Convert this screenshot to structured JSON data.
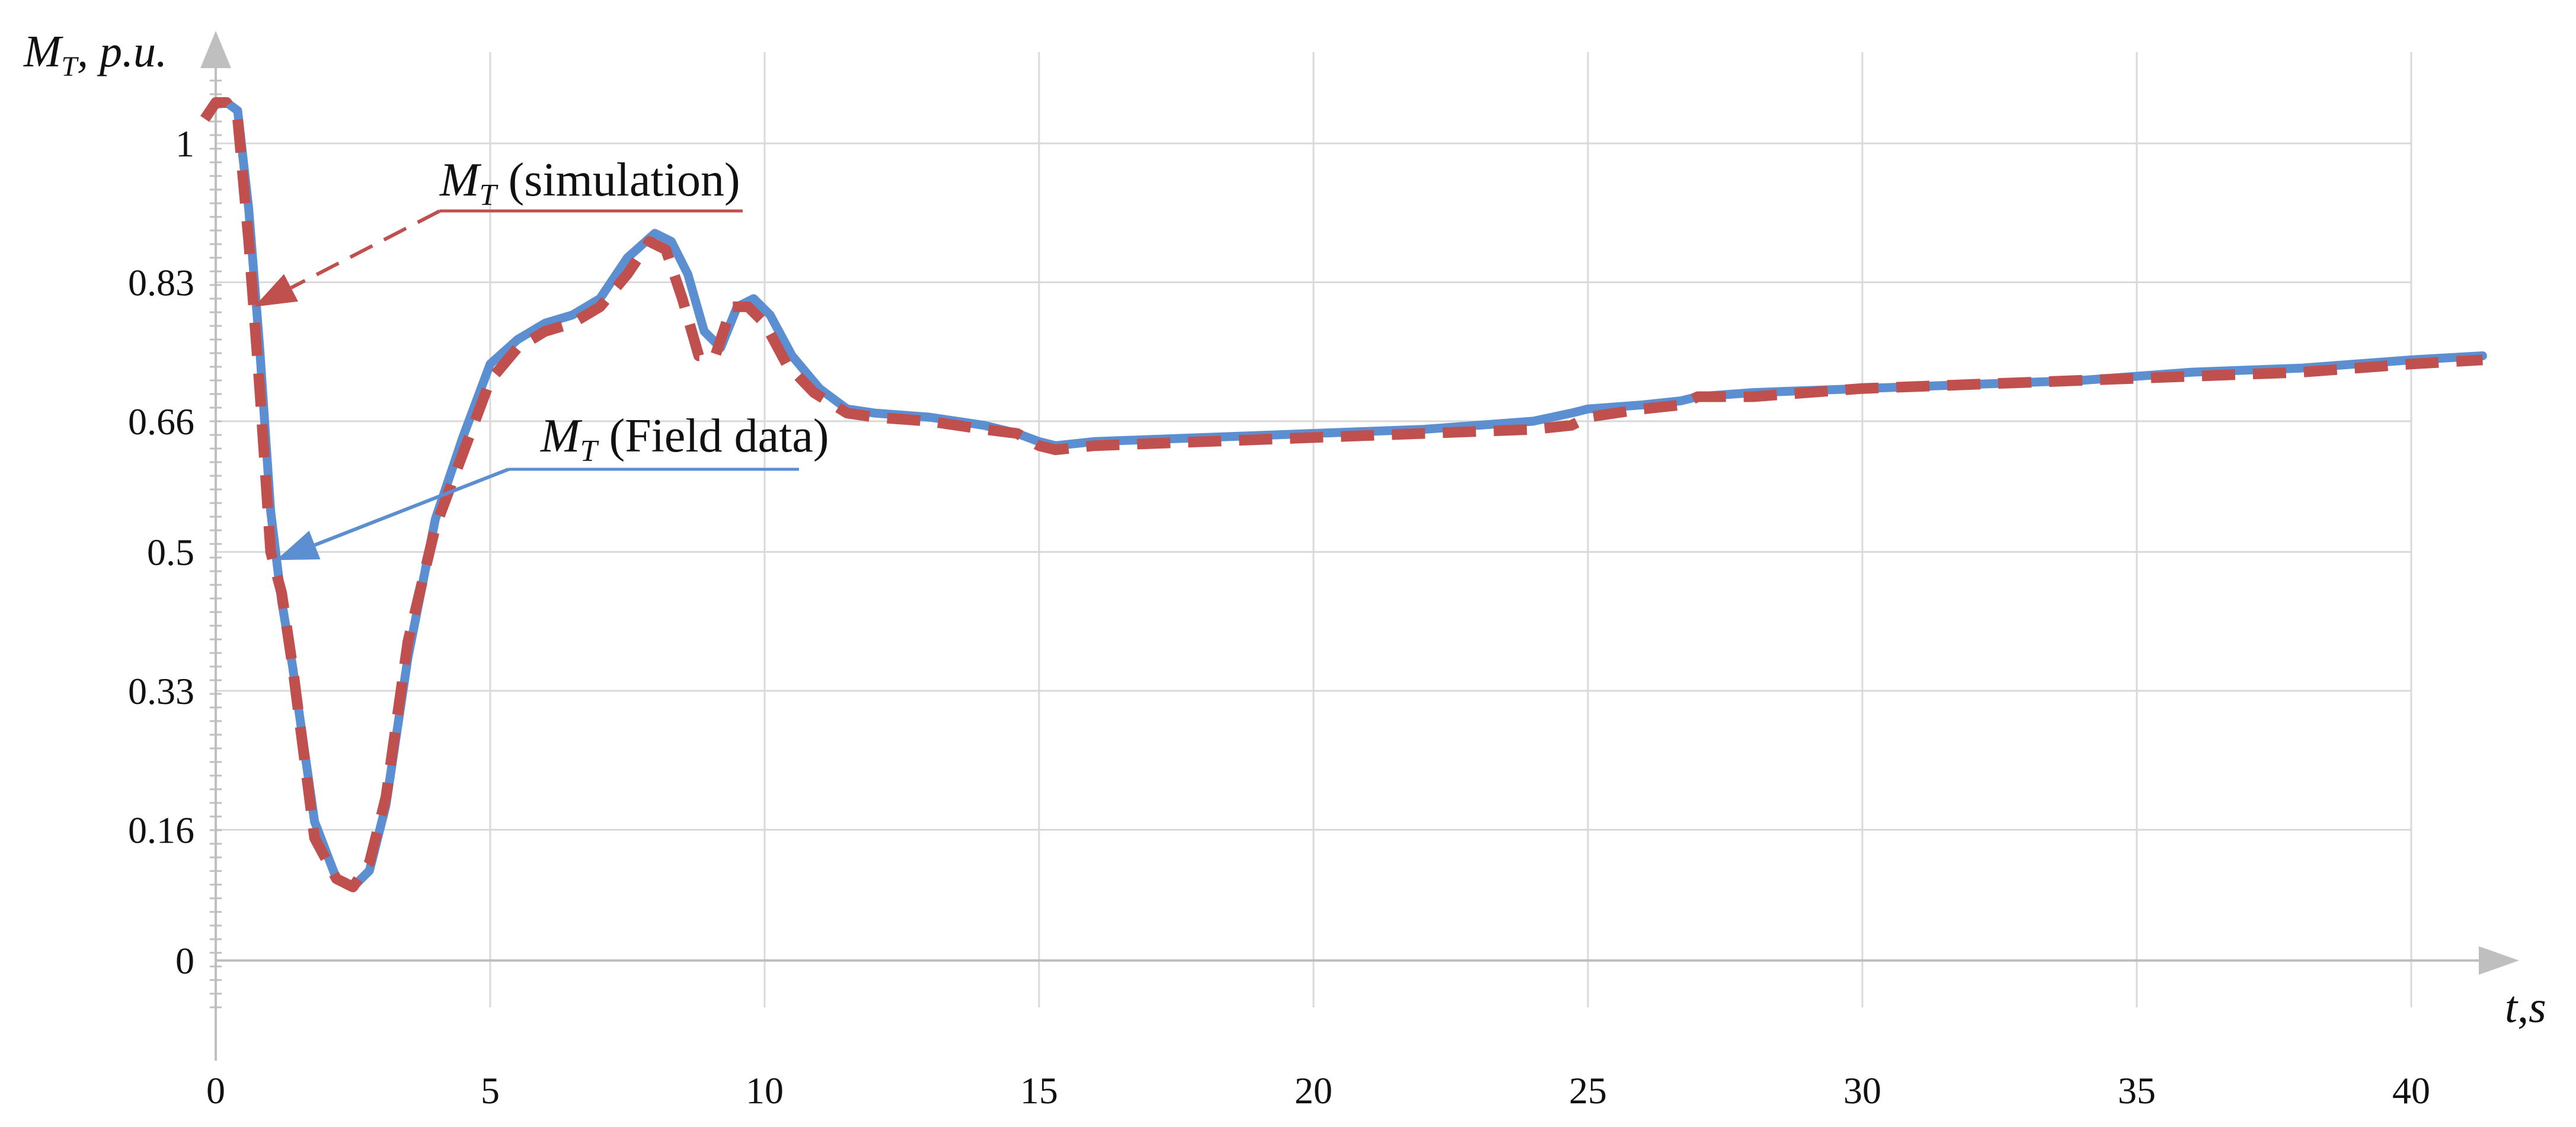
{
  "chart_data": {
    "type": "line",
    "x_tick_labels": [
      "0",
      "5",
      "10",
      "15",
      "20",
      "25",
      "30",
      "35",
      "40"
    ],
    "y_tick_labels": [
      "0",
      "0.16",
      "0.33",
      "0.5",
      "0.66",
      "0.83",
      "1"
    ],
    "xlim": [
      0,
      41.5
    ],
    "ylim": [
      -0.1,
      1.12
    ],
    "grid": true,
    "xlabel": {
      "sym": "t",
      "sep": ",",
      "unit": "s"
    },
    "ylabel": {
      "sym": "M",
      "sub": "T",
      "rest": ", p.u."
    },
    "series": [
      {
        "name": "M_T (Field data)",
        "color": "#5b8fd1",
        "style": "solid",
        "x": [
          0,
          0.2,
          0.4,
          0.6,
          0.8,
          1.0,
          1.2,
          1.4,
          1.8,
          2.2,
          2.5,
          2.8,
          3.1,
          3.5,
          4.0,
          4.5,
          5.0,
          5.5,
          6.0,
          6.5,
          7.0,
          7.5,
          8.0,
          8.3,
          8.6,
          8.9,
          9.2,
          9.5,
          9.8,
          10.1,
          10.5,
          11.0,
          11.5,
          12.0,
          13.0,
          14.0,
          14.6,
          15.0,
          15.3,
          16.0,
          18.0,
          20.0,
          22.0,
          24.0,
          24.7,
          25.0,
          26.0,
          26.7,
          27.0,
          28.0,
          30.0,
          32.0,
          34.0,
          36.0,
          38.0,
          40.0,
          41.3
        ],
        "y": [
          1.05,
          1.05,
          1.04,
          0.92,
          0.75,
          0.55,
          0.44,
          0.36,
          0.17,
          0.1,
          0.09,
          0.11,
          0.19,
          0.37,
          0.54,
          0.64,
          0.73,
          0.76,
          0.78,
          0.79,
          0.81,
          0.86,
          0.89,
          0.88,
          0.84,
          0.77,
          0.75,
          0.8,
          0.81,
          0.79,
          0.74,
          0.7,
          0.675,
          0.67,
          0.665,
          0.655,
          0.645,
          0.635,
          0.63,
          0.635,
          0.64,
          0.645,
          0.65,
          0.66,
          0.67,
          0.675,
          0.68,
          0.685,
          0.69,
          0.695,
          0.7,
          0.705,
          0.71,
          0.72,
          0.725,
          0.735,
          0.74
        ]
      },
      {
        "name": "M_T (simulation)",
        "color": "#c0504d",
        "style": "dashed",
        "x": [
          -0.2,
          0.0,
          0.2,
          0.4,
          0.6,
          0.8,
          1.0,
          1.2,
          1.4,
          1.8,
          2.2,
          2.5,
          2.8,
          3.1,
          3.5,
          4.0,
          4.5,
          5.0,
          5.5,
          6.0,
          6.5,
          7.0,
          7.5,
          7.9,
          8.2,
          8.5,
          8.8,
          9.1,
          9.4,
          9.7,
          10.0,
          10.4,
          10.9,
          11.5,
          12.0,
          13.0,
          14.0,
          14.6,
          15.0,
          15.3,
          16.0,
          18.0,
          20.0,
          22.0,
          24.0,
          24.7,
          25.0,
          26.0,
          26.7,
          27.0,
          28.0,
          30.0,
          32.0,
          34.0,
          36.0,
          38.0,
          40.0,
          41.3
        ],
        "y": [
          1.03,
          1.05,
          1.05,
          1.03,
          0.88,
          0.7,
          0.5,
          0.45,
          0.36,
          0.15,
          0.1,
          0.09,
          0.12,
          0.2,
          0.39,
          0.53,
          0.62,
          0.71,
          0.75,
          0.77,
          0.78,
          0.8,
          0.84,
          0.88,
          0.87,
          0.81,
          0.74,
          0.74,
          0.8,
          0.8,
          0.78,
          0.73,
          0.695,
          0.67,
          0.665,
          0.66,
          0.65,
          0.645,
          0.63,
          0.625,
          0.63,
          0.635,
          0.64,
          0.645,
          0.65,
          0.655,
          0.665,
          0.675,
          0.68,
          0.69,
          0.69,
          0.7,
          0.705,
          0.71,
          0.715,
          0.72,
          0.73,
          0.735
        ]
      }
    ],
    "annotations": [
      {
        "sym": "M",
        "sub": "T",
        "text": " (simulation)",
        "color": "#c0504d",
        "arrow_style": "dashed",
        "target_x": 0.7,
        "target_y": 0.8
      },
      {
        "sym": "M",
        "sub": "T",
        "text": " (Field data)",
        "color": "#5b8fd1",
        "arrow_style": "solid",
        "target_x": 1.1,
        "target_y": 0.49
      }
    ]
  }
}
